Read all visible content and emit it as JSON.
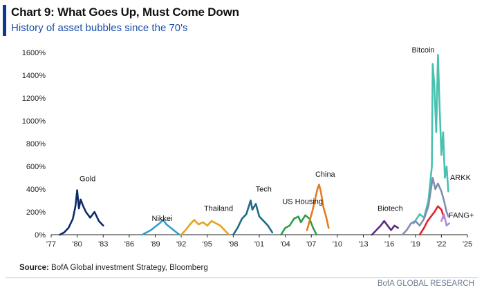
{
  "header": {
    "title": "Chart 9: What Goes Up, Must Come Down",
    "subtitle": "History of asset bubbles since the 70's"
  },
  "footer": {
    "source_label": "Source:",
    "source_text": "BofA Global investment Strategy, Bloomberg",
    "brand": "BofA GLOBAL RESEARCH"
  },
  "chart_data": {
    "type": "line",
    "title": "Chart 9: What Goes Up, Must Come Down",
    "subtitle": "History of asset bubbles since the 70's",
    "xlabel": "",
    "ylabel": "",
    "xlim": [
      1977,
      2025
    ],
    "ylim": [
      0,
      1600
    ],
    "x_tick_values": [
      1977,
      1980,
      1983,
      1986,
      1989,
      1992,
      1995,
      1998,
      2001,
      2004,
      2007,
      2010,
      2013,
      2016,
      2019,
      2022,
      2025
    ],
    "x_tick_labels": [
      "'77",
      "'80",
      "'83",
      "'86",
      "'89",
      "'92",
      "'95",
      "'98",
      "'01",
      "'04",
      "'07",
      "'10",
      "'13",
      "'16",
      "'19",
      "'22",
      "'25"
    ],
    "y_tick_values": [
      0,
      200,
      400,
      600,
      800,
      1000,
      1200,
      1400,
      1600
    ],
    "y_tick_labels": [
      "0%",
      "200%",
      "400%",
      "600%",
      "800%",
      "1000%",
      "1200%",
      "1400%",
      "1600%"
    ],
    "grid": false,
    "legend": "none (series labeled directly on chart)",
    "series": [
      {
        "name": "Gold",
        "color": "#0d2b6b",
        "x": [
          1978.0,
          1978.5,
          1979.0,
          1979.5,
          1979.8,
          1980.0,
          1980.2,
          1980.4,
          1980.7,
          1981.0,
          1981.5,
          1982.0,
          1982.5,
          1983.0
        ],
        "y": [
          0,
          20,
          60,
          140,
          250,
          390,
          230,
          310,
          250,
          200,
          150,
          200,
          120,
          80
        ]
      },
      {
        "name": "Nikkei",
        "color": "#2a9fd0",
        "x": [
          1987.5,
          1988.0,
          1988.5,
          1989.0,
          1989.5,
          1989.9,
          1990.3,
          1990.8,
          1991.3,
          1991.8
        ],
        "y": [
          0,
          20,
          40,
          70,
          100,
          130,
          90,
          60,
          30,
          0
        ]
      },
      {
        "name": "Thailand",
        "color": "#e8a21c",
        "x": [
          1992.0,
          1992.5,
          1993.0,
          1993.5,
          1994.0,
          1994.5,
          1995.0,
          1995.5,
          1996.0,
          1996.5,
          1997.0,
          1997.5
        ],
        "y": [
          0,
          40,
          90,
          130,
          90,
          110,
          80,
          120,
          100,
          80,
          40,
          0
        ]
      },
      {
        "name": "Tech",
        "color": "#1d6b86",
        "x": [
          1998.0,
          1998.5,
          1999.0,
          1999.5,
          2000.0,
          2000.2,
          2000.6,
          2001.0,
          2001.5,
          2002.0,
          2002.5
        ],
        "y": [
          0,
          60,
          140,
          180,
          300,
          220,
          270,
          160,
          120,
          80,
          20
        ]
      },
      {
        "name": "US Housing",
        "color": "#2e9e4a",
        "x": [
          2003.5,
          2004.0,
          2004.5,
          2005.0,
          2005.5,
          2005.8,
          2006.3,
          2006.8,
          2007.2,
          2007.6
        ],
        "y": [
          0,
          60,
          80,
          140,
          160,
          110,
          170,
          140,
          60,
          0
        ]
      },
      {
        "name": "China",
        "color": "#e87a1a",
        "x": [
          2006.5,
          2006.8,
          2007.1,
          2007.4,
          2007.7,
          2007.9,
          2008.1,
          2008.4,
          2008.7,
          2009.0
        ],
        "y": [
          40,
          120,
          200,
          300,
          400,
          440,
          380,
          240,
          160,
          60
        ]
      },
      {
        "name": "Biotech",
        "color": "#5b2a86",
        "x": [
          2014.0,
          2014.5,
          2015.0,
          2015.4,
          2015.8,
          2016.2,
          2016.6,
          2017.0
        ],
        "y": [
          0,
          40,
          80,
          120,
          80,
          40,
          80,
          60
        ]
      },
      {
        "name": "Bitcoin",
        "color": "#49c1b0",
        "x": [
          2018.8,
          2019.5,
          2020.0,
          2020.5,
          2020.9,
          2021.0,
          2021.2,
          2021.4,
          2021.6,
          2021.8,
          2022.0,
          2022.2,
          2022.4,
          2022.6,
          2022.8
        ],
        "y": [
          100,
          180,
          150,
          300,
          600,
          1500,
          1300,
          900,
          1580,
          1100,
          700,
          900,
          500,
          600,
          380
        ]
      },
      {
        "name": "ARKK",
        "color": "#7f8fb0",
        "x": [
          2017.5,
          2018.0,
          2018.5,
          2019.0,
          2019.5,
          2020.0,
          2020.5,
          2021.0,
          2021.3,
          2021.6,
          2022.0,
          2022.3,
          2022.6,
          2022.8
        ],
        "y": [
          0,
          40,
          100,
          120,
          80,
          140,
          250,
          500,
          400,
          450,
          380,
          300,
          200,
          160
        ]
      },
      {
        "name": "FANG+",
        "color": "#e3212c",
        "x": [
          2019.5,
          2020.0,
          2020.4,
          2020.8,
          2021.2,
          2021.6,
          2022.0,
          2022.3
        ],
        "y": [
          0,
          60,
          120,
          160,
          200,
          250,
          220,
          150
        ]
      },
      {
        "name": "FANG+ (tail)",
        "color": "#b48ad0",
        "x": [
          2022.0,
          2022.3,
          2022.6,
          2022.9
        ],
        "y": [
          120,
          180,
          80,
          100
        ]
      }
    ],
    "annotations": [
      {
        "text": "Gold",
        "x": 1981.2,
        "y": 470
      },
      {
        "text": "Nikkei",
        "x": 1989.8,
        "y": 120
      },
      {
        "text": "Thailand",
        "x": 1996.3,
        "y": 210
      },
      {
        "text": "Tech",
        "x": 2001.5,
        "y": 380
      },
      {
        "text": "US Housing",
        "x": 2006.0,
        "y": 270
      },
      {
        "text": "China",
        "x": 2008.6,
        "y": 510
      },
      {
        "text": "Biotech",
        "x": 2016.1,
        "y": 210
      },
      {
        "text": "Bitcoin",
        "x": 2019.9,
        "y": 1600
      },
      {
        "text": "ARKK",
        "x": 2024.2,
        "y": 480
      },
      {
        "text": "FANG+",
        "x": 2024.3,
        "y": 150
      }
    ]
  }
}
